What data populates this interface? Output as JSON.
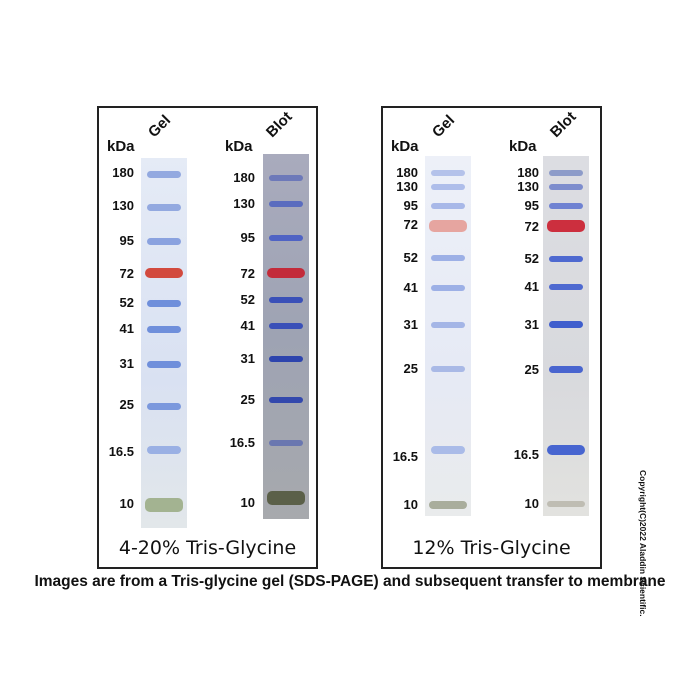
{
  "panels": [
    {
      "title": "4-20% Tris-Glycine",
      "lanes": [
        {
          "header": "Gel",
          "unit": "kDa",
          "markers": [
            "180",
            "130",
            "95",
            "72",
            "52",
            "41",
            "31",
            "25",
            "16.5",
            "10"
          ]
        },
        {
          "header": "Blot",
          "unit": "kDa",
          "markers": [
            "180",
            "130",
            "95",
            "72",
            "52",
            "41",
            "31",
            "25",
            "16.5",
            "10"
          ]
        }
      ]
    },
    {
      "title": "12% Tris-Glycine",
      "lanes": [
        {
          "header": "Gel",
          "unit": "kDa",
          "markers": [
            "180",
            "130",
            "95",
            "72",
            "52",
            "41",
            "31",
            "25",
            "16.5",
            "10"
          ]
        },
        {
          "header": "Blot",
          "unit": "kDa",
          "markers": [
            "180",
            "130",
            "95",
            "72",
            "52",
            "41",
            "31",
            "25",
            "16.5",
            "10"
          ]
        }
      ]
    }
  ],
  "caption": "Images are from a Tris-glycine gel (SDS-PAGE) and subsequent transfer to membrane",
  "copyright": "Copyright(C)2022 Aladdin Scientific.",
  "colors": {
    "band_blue": "#5a7fd6",
    "band_red": "#d23a3a",
    "band_green": "#6f7d55"
  }
}
